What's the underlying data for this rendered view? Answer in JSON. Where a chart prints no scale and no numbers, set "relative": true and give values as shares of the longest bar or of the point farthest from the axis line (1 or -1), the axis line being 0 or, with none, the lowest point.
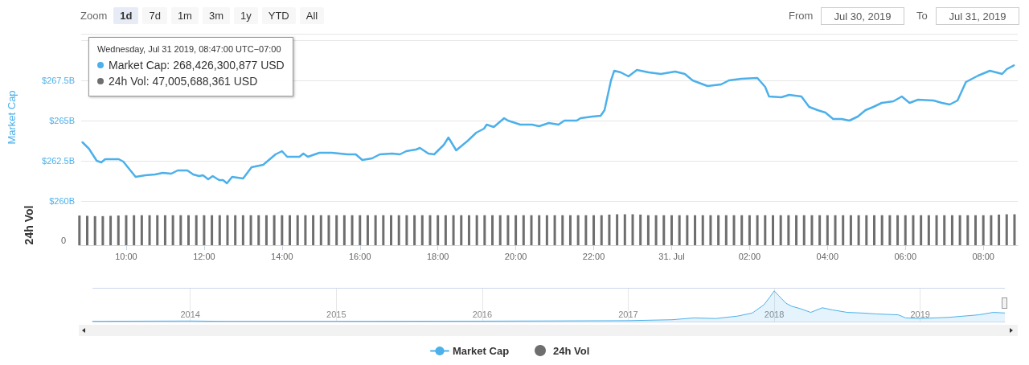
{
  "chart_data": [
    {
      "type": "line",
      "ylabel": "Market Cap",
      "xlim": [
        "2019-07-30T08:47",
        "2019-07-31T08:53"
      ],
      "ylim": [
        260,
        270.4
      ],
      "yticks": [
        {
          "value": 260,
          "label": "$260B"
        },
        {
          "value": 262.5,
          "label": "$262.5B"
        },
        {
          "value": 265,
          "label": "$265B"
        },
        {
          "value": 267.5,
          "label": "$267.5B"
        }
      ],
      "grid": "y",
      "tick_labels": "y",
      "marker": "none",
      "legend": "bottom",
      "annotations": [
        "Zoom",
        "1d",
        "7d",
        "1m",
        "3m",
        "1y",
        "YTD",
        "All",
        "From",
        "Jul 30, 2019",
        "To",
        "Jul 31, 2019",
        "Wednesday, Jul 31 2019, 08:47:00 UTC−07:00",
        "Market Cap: 268,426,300,877 USD",
        "24h Vol: 47,005,688,361 USD"
      ],
      "series": [
        {
          "name": "Market Cap",
          "color": "#4cb0ea",
          "x": [
            "2019-07-30T08:49",
            "2019-07-30T08:59",
            "2019-07-30T09:11",
            "2019-07-30T09:18",
            "2019-07-30T09:24",
            "2019-07-30T09:45",
            "2019-07-30T09:52",
            "2019-07-30T10:04",
            "2019-07-30T10:11",
            "2019-07-30T10:26",
            "2019-07-30T10:41",
            "2019-07-30T10:53",
            "2019-07-30T11:06",
            "2019-07-30T11:16",
            "2019-07-30T11:31",
            "2019-07-30T11:40",
            "2019-07-30T11:49",
            "2019-07-30T11:55",
            "2019-07-30T12:03",
            "2019-07-30T12:10",
            "2019-07-30T12:20",
            "2019-07-30T12:26",
            "2019-07-30T12:32",
            "2019-07-30T12:40",
            "2019-07-30T12:57",
            "2019-07-30T13:10",
            "2019-07-30T13:28",
            "2019-07-30T13:47",
            "2019-07-30T13:57",
            "2019-07-30T14:05",
            "2019-07-30T14:24",
            "2019-07-30T14:30",
            "2019-07-30T14:37",
            "2019-07-30T14:55",
            "2019-07-30T15:14",
            "2019-07-30T15:38",
            "2019-07-30T15:51",
            "2019-07-30T16:01",
            "2019-07-30T16:16",
            "2019-07-30T16:28",
            "2019-07-30T16:47",
            "2019-07-30T16:59",
            "2019-07-30T17:09",
            "2019-07-30T17:24",
            "2019-07-30T17:30",
            "2019-07-30T17:43",
            "2019-07-30T17:52",
            "2019-07-30T18:07",
            "2019-07-30T18:14",
            "2019-07-30T18:26",
            "2019-07-30T18:44",
            "2019-07-30T18:57",
            "2019-07-30T19:09",
            "2019-07-30T19:13",
            "2019-07-30T19:24",
            "2019-07-30T19:40",
            "2019-07-30T19:46",
            "2019-07-30T20:05",
            "2019-07-30T20:23",
            "2019-07-30T20:34",
            "2019-07-30T20:49",
            "2019-07-30T21:04",
            "2019-07-30T21:13",
            "2019-07-30T21:32",
            "2019-07-30T21:38",
            "2019-07-30T21:56",
            "2019-07-30T22:09",
            "2019-07-30T22:15",
            "2019-07-30T22:25",
            "2019-07-30T22:30",
            "2019-07-30T22:40",
            "2019-07-30T22:52",
            "2019-07-30T23:05",
            "2019-07-30T23:23",
            "2019-07-30T23:42",
            "2019-07-31T00:04",
            "2019-07-31T00:19",
            "2019-07-31T00:31",
            "2019-07-31T00:44",
            "2019-07-31T00:54",
            "2019-07-31T01:15",
            "2019-07-31T01:27",
            "2019-07-31T01:46",
            "2019-07-31T02:11",
            "2019-07-31T02:23",
            "2019-07-31T02:29",
            "2019-07-31T02:48",
            "2019-07-31T03:00",
            "2019-07-31T03:19",
            "2019-07-31T03:31",
            "2019-07-31T03:44",
            "2019-07-31T03:56",
            "2019-07-31T04:08",
            "2019-07-31T04:21",
            "2019-07-31T04:33",
            "2019-07-31T04:46",
            "2019-07-31T04:58",
            "2019-07-31T05:10",
            "2019-07-31T05:23",
            "2019-07-31T05:41",
            "2019-07-31T05:54",
            "2019-07-31T06:06",
            "2019-07-31T06:19",
            "2019-07-31T06:43",
            "2019-07-31T06:56",
            "2019-07-31T07:08",
            "2019-07-31T07:20",
            "2019-07-31T07:33",
            "2019-07-31T07:52",
            "2019-07-31T08:10",
            "2019-07-31T08:29",
            "2019-07-31T08:36",
            "2019-07-31T08:47"
          ],
          "values": [
            263.65,
            263.25,
            262.5,
            262.4,
            262.6,
            262.6,
            262.45,
            261.85,
            261.5,
            261.6,
            261.65,
            261.75,
            261.7,
            261.9,
            261.9,
            261.65,
            261.55,
            261.6,
            261.35,
            261.55,
            261.3,
            261.3,
            261.1,
            261.5,
            261.4,
            262.1,
            262.25,
            262.9,
            263.1,
            262.75,
            262.75,
            262.95,
            262.75,
            263.0,
            263.0,
            262.9,
            262.9,
            262.55,
            262.65,
            262.9,
            262.95,
            262.9,
            263.1,
            263.2,
            263.3,
            262.95,
            262.9,
            263.5,
            263.95,
            263.15,
            263.75,
            264.25,
            264.5,
            264.75,
            264.6,
            265.15,
            265.0,
            264.75,
            264.75,
            264.65,
            264.85,
            264.75,
            265.0,
            265.0,
            265.15,
            265.25,
            265.3,
            265.65,
            267.5,
            268.1,
            268.0,
            267.75,
            268.15,
            268.0,
            267.9,
            268.05,
            267.9,
            267.5,
            267.3,
            267.15,
            267.25,
            267.5,
            267.6,
            267.65,
            267.1,
            266.5,
            266.45,
            266.6,
            266.5,
            265.85,
            265.65,
            265.5,
            265.1,
            265.1,
            265.0,
            265.25,
            265.65,
            265.85,
            266.1,
            266.2,
            266.5,
            266.1,
            266.3,
            266.25,
            266.1,
            266.0,
            266.25,
            267.4,
            267.8,
            268.1,
            267.9,
            268.2,
            268.43
          ]
        }
      ]
    },
    {
      "type": "bar",
      "relative": true,
      "ylabel": "24h Vol",
      "xlim": [
        "2019-07-30T08:47",
        "2019-07-31T08:53"
      ],
      "xticks": [
        {
          "value": "2019-07-30T10:00",
          "label": "10:00"
        },
        {
          "value": "2019-07-30T12:00",
          "label": "12:00"
        },
        {
          "value": "2019-07-30T14:00",
          "label": "14:00"
        },
        {
          "value": "2019-07-30T16:00",
          "label": "16:00"
        },
        {
          "value": "2019-07-30T18:00",
          "label": "18:00"
        },
        {
          "value": "2019-07-30T20:00",
          "label": "20:00"
        },
        {
          "value": "2019-07-30T22:00",
          "label": "22:00"
        },
        {
          "value": "2019-07-31T00:00",
          "label": "31. Jul"
        },
        {
          "value": "2019-07-31T02:00",
          "label": "02:00"
        },
        {
          "value": "2019-07-31T04:00",
          "label": "04:00"
        },
        {
          "value": "2019-07-31T06:00",
          "label": "06:00"
        },
        {
          "value": "2019-07-31T08:00",
          "label": "08:00"
        }
      ],
      "tick_labels": "x",
      "legend": "bottom",
      "annotations": [
        "0"
      ],
      "series": [
        {
          "name": "24h Vol",
          "color": "#6e6e6e",
          "x": [
            "2019-07-30T08:48",
            "2019-07-30T09:00",
            "2019-07-30T09:12",
            "2019-07-30T09:24",
            "2019-07-30T09:36",
            "2019-07-30T09:48",
            "2019-07-30T10:00",
            "2019-07-30T10:12",
            "2019-07-30T10:24",
            "2019-07-30T10:36",
            "2019-07-30T10:48",
            "2019-07-30T11:00",
            "2019-07-30T11:12",
            "2019-07-30T11:24",
            "2019-07-30T11:36",
            "2019-07-30T11:48",
            "2019-07-30T12:00",
            "2019-07-30T12:12",
            "2019-07-30T12:24",
            "2019-07-30T12:36",
            "2019-07-30T12:48",
            "2019-07-30T13:00",
            "2019-07-30T13:12",
            "2019-07-30T13:24",
            "2019-07-30T13:36",
            "2019-07-30T13:48",
            "2019-07-30T14:00",
            "2019-07-30T14:12",
            "2019-07-30T14:24",
            "2019-07-30T14:36",
            "2019-07-30T14:48",
            "2019-07-30T15:00",
            "2019-07-30T15:12",
            "2019-07-30T15:24",
            "2019-07-30T15:36",
            "2019-07-30T15:48",
            "2019-07-30T16:00",
            "2019-07-30T16:12",
            "2019-07-30T16:24",
            "2019-07-30T16:36",
            "2019-07-30T16:48",
            "2019-07-30T17:00",
            "2019-07-30T17:12",
            "2019-07-30T17:24",
            "2019-07-30T17:36",
            "2019-07-30T17:48",
            "2019-07-30T18:00",
            "2019-07-30T18:12",
            "2019-07-30T18:24",
            "2019-07-30T18:36",
            "2019-07-30T18:48",
            "2019-07-30T19:00",
            "2019-07-30T19:12",
            "2019-07-30T19:24",
            "2019-07-30T19:36",
            "2019-07-30T19:48",
            "2019-07-30T20:00",
            "2019-07-30T20:12",
            "2019-07-30T20:24",
            "2019-07-30T20:36",
            "2019-07-30T20:48",
            "2019-07-30T21:00",
            "2019-07-30T21:12",
            "2019-07-30T21:24",
            "2019-07-30T21:36",
            "2019-07-30T21:48",
            "2019-07-30T22:00",
            "2019-07-30T22:12",
            "2019-07-30T22:24",
            "2019-07-30T22:36",
            "2019-07-30T22:48",
            "2019-07-30T23:00",
            "2019-07-30T23:12",
            "2019-07-30T23:24",
            "2019-07-30T23:36",
            "2019-07-30T23:48",
            "2019-07-31T00:00",
            "2019-07-31T00:12",
            "2019-07-31T00:24",
            "2019-07-31T00:36",
            "2019-07-31T00:48",
            "2019-07-31T01:00",
            "2019-07-31T01:12",
            "2019-07-31T01:24",
            "2019-07-31T01:36",
            "2019-07-31T01:48",
            "2019-07-31T02:00",
            "2019-07-31T02:12",
            "2019-07-31T02:24",
            "2019-07-31T02:36",
            "2019-07-31T02:48",
            "2019-07-31T03:00",
            "2019-07-31T03:12",
            "2019-07-31T03:24",
            "2019-07-31T03:36",
            "2019-07-31T03:48",
            "2019-07-31T04:00",
            "2019-07-31T04:12",
            "2019-07-31T04:24",
            "2019-07-31T04:36",
            "2019-07-31T04:48",
            "2019-07-31T05:00",
            "2019-07-31T05:12",
            "2019-07-31T05:24",
            "2019-07-31T05:36",
            "2019-07-31T05:48",
            "2019-07-31T06:00",
            "2019-07-31T06:12",
            "2019-07-31T06:24",
            "2019-07-31T06:36",
            "2019-07-31T06:48",
            "2019-07-31T07:00",
            "2019-07-31T07:12",
            "2019-07-31T07:24",
            "2019-07-31T07:36",
            "2019-07-31T07:48",
            "2019-07-31T08:00",
            "2019-07-31T08:12",
            "2019-07-31T08:24",
            "2019-07-31T08:36",
            "2019-07-31T08:48"
          ],
          "values": [
            0.96,
            0.95,
            0.94,
            0.94,
            0.95,
            0.96,
            0.97,
            0.97,
            0.97,
            0.97,
            0.97,
            0.97,
            0.97,
            0.97,
            0.97,
            0.97,
            0.97,
            0.97,
            0.97,
            0.97,
            0.97,
            0.97,
            0.97,
            0.97,
            0.97,
            0.97,
            0.97,
            0.97,
            0.97,
            0.97,
            0.97,
            0.97,
            0.97,
            0.97,
            0.97,
            0.97,
            0.97,
            0.97,
            0.97,
            0.97,
            0.97,
            0.97,
            0.97,
            0.97,
            0.97,
            0.97,
            0.97,
            0.97,
            0.97,
            0.97,
            0.97,
            0.97,
            0.97,
            0.97,
            0.97,
            0.97,
            0.97,
            0.97,
            0.97,
            0.97,
            0.97,
            0.97,
            0.97,
            0.97,
            0.97,
            0.97,
            0.97,
            0.97,
            0.99,
            1,
            1,
            1,
            0.99,
            0.97,
            0.97,
            0.97,
            0.97,
            0.97,
            0.97,
            0.97,
            0.97,
            0.97,
            0.97,
            0.97,
            0.97,
            0.97,
            0.97,
            0.97,
            0.97,
            0.97,
            0.97,
            0.97,
            0.97,
            0.97,
            0.97,
            0.97,
            0.97,
            0.97,
            0.97,
            0.97,
            0.97,
            0.97,
            0.97,
            0.97,
            0.97,
            0.97,
            0.97,
            0.97,
            0.97,
            0.97,
            0.97,
            0.97,
            0.97,
            0.97,
            0.97,
            0.97,
            0.97,
            0.97,
            0.99,
            1,
            1
          ]
        }
      ]
    },
    {
      "type": "area",
      "relative": true,
      "xlim": [
        2013.33,
        2019.58
      ],
      "xticks": [
        2014,
        2015,
        2016,
        2017,
        2018,
        2019
      ],
      "tick_labels": "x",
      "grid": "x",
      "series": [
        {
          "color": "#4cb0ea",
          "x": [
            2013.33,
            2014,
            2014.2,
            2015,
            2016,
            2017,
            2017.3,
            2017.45,
            2017.6,
            2017.75,
            2017.85,
            2017.93,
            2017.97,
            2018,
            2018.03,
            2018.08,
            2018.12,
            2018.18,
            2018.25,
            2018.33,
            2018.4,
            2018.5,
            2018.6,
            2018.7,
            2018.85,
            2018.9,
            2019,
            2019.2,
            2019.4,
            2019.5,
            2019.58
          ],
          "values": [
            0.01,
            0.02,
            0.01,
            0.01,
            0.015,
            0.03,
            0.06,
            0.12,
            0.1,
            0.18,
            0.28,
            0.55,
            0.8,
            1,
            0.85,
            0.6,
            0.5,
            0.42,
            0.3,
            0.45,
            0.38,
            0.3,
            0.28,
            0.25,
            0.22,
            0.12,
            0.1,
            0.14,
            0.22,
            0.3,
            0.28
          ]
        }
      ]
    }
  ]
}
